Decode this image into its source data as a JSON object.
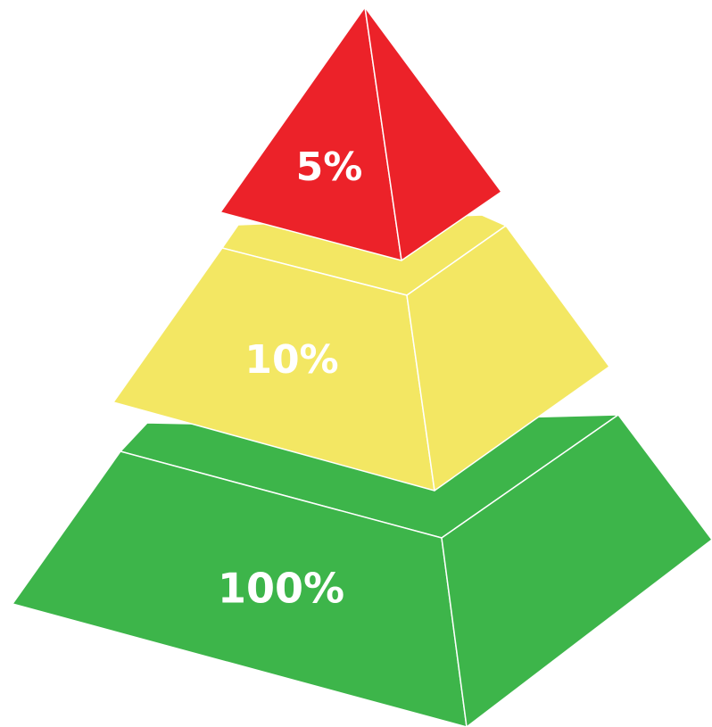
{
  "pyramid": {
    "tiers": [
      {
        "id": "top",
        "label": "5%",
        "color": "#ec2229"
      },
      {
        "id": "middle",
        "label": "10%",
        "color": "#f3e763"
      },
      {
        "id": "bottom",
        "label": "100%",
        "color": "#3db54a"
      }
    ]
  }
}
